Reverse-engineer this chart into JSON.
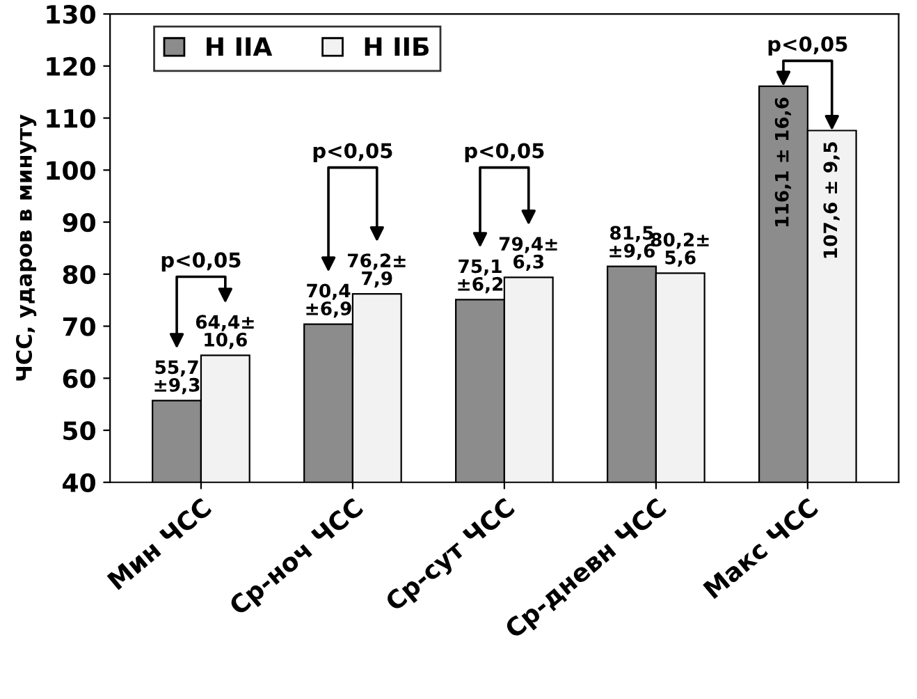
{
  "chart_data": {
    "type": "bar",
    "ylabel": "ЧСС, ударов в минуту",
    "categories": [
      "Мин ЧСС",
      "Ср-ноч ЧСС",
      "Ср-сут ЧСС",
      "Ср-дневн ЧСС",
      "Макс ЧСС"
    ],
    "series": [
      {
        "name": "Н IIА",
        "color": "#8c8c8c",
        "values": [
          55.7,
          70.4,
          75.1,
          81.5,
          116.1
        ],
        "value_labels": [
          "55,7\n±9,3",
          "70,4\n±6,9",
          "75,1\n±6,2",
          "81,5\n±9,6",
          "116,1 ± 16,6"
        ]
      },
      {
        "name": "Н IIБ",
        "color": "#f2f2f2",
        "values": [
          64.4,
          76.2,
          79.4,
          80.2,
          107.6
        ],
        "value_labels": [
          "64,4±\n10,6",
          "76,2±\n7,9",
          "79,4±\n6,3",
          "80,2±\n5,6",
          "107,6 ± 9,5"
        ]
      }
    ],
    "ylim": [
      40,
      130
    ],
    "yticks": [
      40,
      50,
      60,
      70,
      80,
      90,
      100,
      110,
      120,
      130
    ],
    "grid": false,
    "legend": "top left",
    "annotations": [
      "p<0,05",
      "p<0,05",
      "p<0,05",
      "p<0,05"
    ]
  }
}
